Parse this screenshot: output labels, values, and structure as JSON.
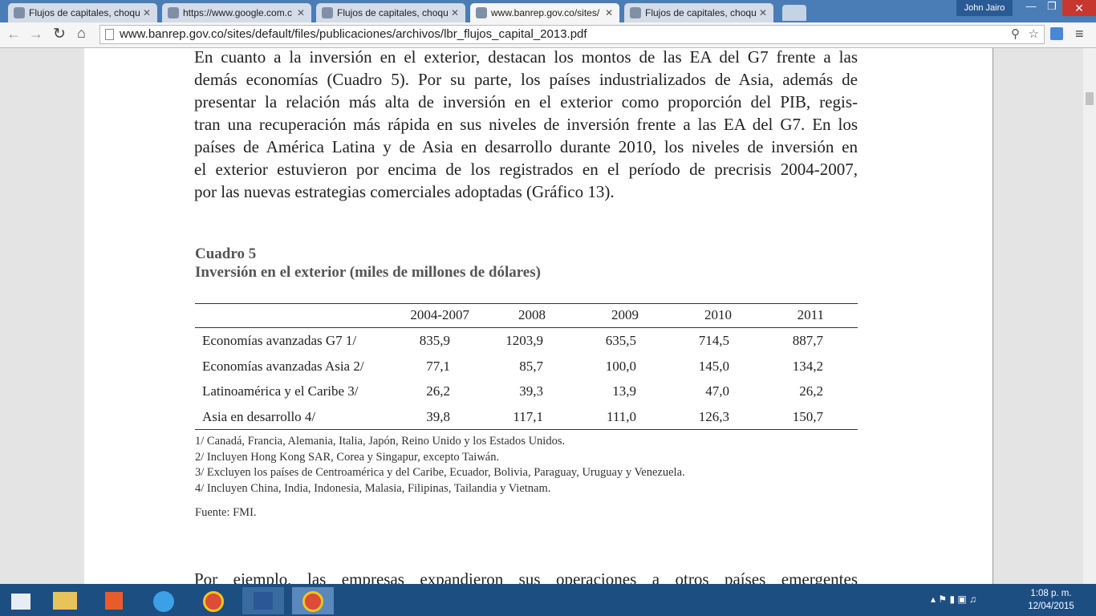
{
  "browser": {
    "tabs": [
      "Flujos de capitales, choqu",
      "https://www.google.com.c",
      "Flujos de capitales, choqu",
      "www.banrep.gov.co/sites/",
      "Flujos de capitales, choqu"
    ],
    "user": "John Jairo",
    "url": "www.banrep.gov.co/sites/default/files/publicaciones/archivos/lbr_flujos_capital_2013.pdf"
  },
  "document": {
    "paragraph_lines": [
      "En cuanto a la inversión en el exterior, destacan los montos de las EA del G7 frente a las",
      "demás economías (Cuadro 5). Por su parte, los países industrializados de Asia, además de",
      "presentar la relación más alta de inversión en el exterior como proporción del PIB, regis-",
      "tran una recuperación más rápida en sus niveles de inversión frente a las EA del G7. En los",
      "países de América Latina y de Asia en desarrollo durante 2010, los niveles de inversión en",
      "el exterior estuvieron por encima de los registrados en el período de precrisis 2004-2007,",
      "por las nuevas estrategias comerciales adoptadas (Gráfico 13)."
    ],
    "table": {
      "label": "Cuadro 5",
      "title": "Inversión en el exterior (miles de millones de dólares)",
      "columns": [
        "2004-2007",
        "2008",
        "2009",
        "2010",
        "2011"
      ],
      "rows": [
        {
          "name": "Economías avanzadas G7 1/",
          "values": [
            "835,9",
            "1203,9",
            "635,5",
            "714,5",
            "887,7"
          ]
        },
        {
          "name": "Economías avanzadas Asia 2/",
          "values": [
            "77,1",
            "85,7",
            "100,0",
            "145,0",
            "134,2"
          ]
        },
        {
          "name": "Latinoamérica y el Caribe 3/",
          "values": [
            "26,2",
            "39,3",
            "13,9",
            "47,0",
            "26,2"
          ]
        },
        {
          "name": "Asia en desarrollo 4/",
          "values": [
            "39,8",
            "117,1",
            "111,0",
            "126,3",
            "150,7"
          ]
        }
      ]
    },
    "notes": [
      "1/ Canadá, Francia, Alemania, Italia, Japón, Reino Unido y los Estados Unidos.",
      "2/ Incluyen Hong Kong SAR, Corea y Singapur, excepto Taiwán.",
      "3/ Excluyen los países de Centroamérica y del Caribe, Ecuador, Bolivia, Paraguay, Uruguay y Venezuela.",
      "4/ Incluyen China, India, Indonesia, Malasia, Filipinas, Tailandia y Vietnam."
    ],
    "source": "Fuente: FMI.",
    "next_line": "Por ejemplo, las empresas expandieron sus operaciones a otros países emergentes"
  },
  "taskbar": {
    "time": "1:08 p. m.",
    "date": "12/04/2015"
  }
}
